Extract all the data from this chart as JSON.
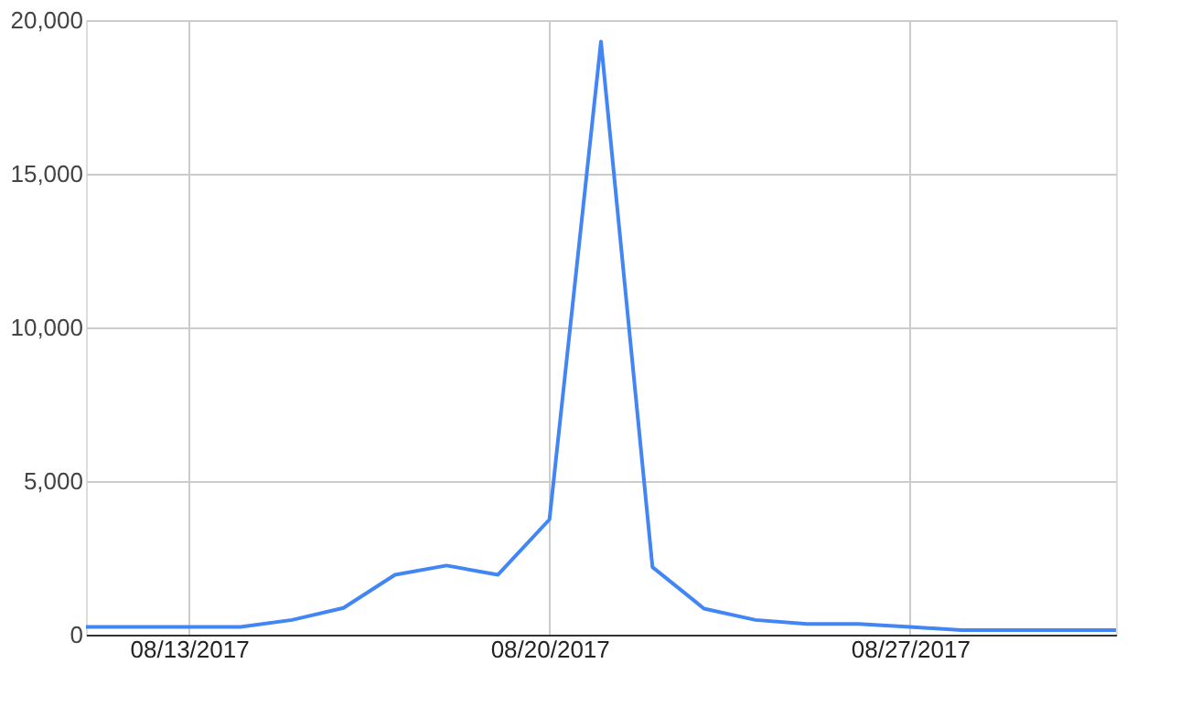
{
  "chart_data": {
    "type": "line",
    "x": [
      "2017-08-11",
      "2017-08-12",
      "2017-08-13",
      "2017-08-14",
      "2017-08-15",
      "2017-08-16",
      "2017-08-17",
      "2017-08-18",
      "2017-08-19",
      "2017-08-20",
      "2017-08-21",
      "2017-08-22",
      "2017-08-23",
      "2017-08-24",
      "2017-08-25",
      "2017-08-26",
      "2017-08-27",
      "2017-08-28",
      "2017-08-29",
      "2017-08-30",
      "2017-08-31"
    ],
    "series": [
      {
        "color": "#4285f4",
        "values": [
          250,
          250,
          250,
          250,
          480,
          870,
          1950,
          2250,
          1950,
          3750,
          19300,
          2200,
          850,
          480,
          350,
          350,
          250,
          150,
          150,
          150,
          150
        ]
      }
    ],
    "xlim": [
      "2017-08-11",
      "2017-08-31"
    ],
    "xticks": [
      {
        "value": "2017-08-13",
        "label": "08/13/2017"
      },
      {
        "value": "2017-08-20",
        "label": "08/20/2017"
      },
      {
        "value": "2017-08-27",
        "label": "08/27/2017"
      }
    ],
    "ylim": [
      0,
      20000
    ],
    "yticks": [
      {
        "value": 0,
        "label": "0"
      },
      {
        "value": 5000,
        "label": "5,000"
      },
      {
        "value": 10000,
        "label": "10,000"
      },
      {
        "value": 15000,
        "label": "15,000"
      },
      {
        "value": 20000,
        "label": "20,000"
      }
    ],
    "grid": true,
    "marker": "none",
    "line_style": "solid"
  }
}
